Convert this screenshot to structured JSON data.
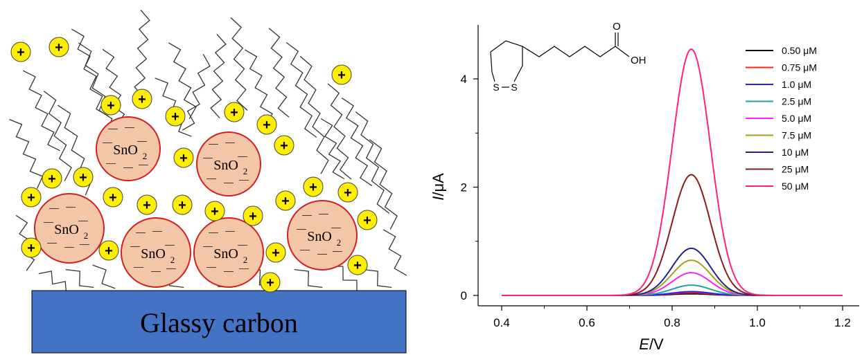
{
  "schematic": {
    "substrate_label": "Glassy carbon",
    "particle_label_main": "SnO",
    "particle_label_sub": "2",
    "cation_symbol": "+",
    "anion_symbol": "—",
    "colors": {
      "substrate": "#4472C4",
      "particle_fill": "#F4C6A8",
      "particle_stroke": "#D02020",
      "cation_fill": "#FFEE00",
      "chain": "#333333"
    }
  },
  "chart_data": {
    "type": "line",
    "xlabel_italic": "E",
    "xlabel_rest": "/V",
    "ylabel_italic": "I",
    "ylabel_rest": "/μA",
    "xlim": [
      0.4,
      1.2
    ],
    "ylim": [
      -0.2,
      5.0
    ],
    "xticks": [
      "0.4",
      "0.6",
      "0.8",
      "1.0",
      "1.2"
    ],
    "yticks": [
      "0",
      "2",
      "4"
    ],
    "legend_position": "top-right",
    "molecule_label": "OH",
    "molecule_o": "O",
    "molecule_s1": "S",
    "molecule_s2": "S",
    "series": [
      {
        "name": "0.50 μM",
        "color": "#000000",
        "peak": 0.03,
        "center": 0.845,
        "sigma": 0.045
      },
      {
        "name": "0.75 μM",
        "color": "#FF2020",
        "peak": 0.05,
        "center": 0.845,
        "sigma": 0.045
      },
      {
        "name": "1.0 μM",
        "color": "#2020FF",
        "peak": 0.07,
        "center": 0.845,
        "sigma": 0.045
      },
      {
        "name": "2.5 μM",
        "color": "#20A0A0",
        "peak": 0.19,
        "center": 0.845,
        "sigma": 0.045
      },
      {
        "name": "5.0 μM",
        "color": "#FF20FF",
        "peak": 0.42,
        "center": 0.845,
        "sigma": 0.045
      },
      {
        "name": "7.5 μM",
        "color": "#A0A020",
        "peak": 0.65,
        "center": 0.845,
        "sigma": 0.045
      },
      {
        "name": "10 μM",
        "color": "#202090",
        "peak": 0.87,
        "center": 0.845,
        "sigma": 0.045
      },
      {
        "name": "25 μM",
        "color": "#8B1A1A",
        "peak": 2.23,
        "center": 0.845,
        "sigma": 0.045
      },
      {
        "name": "50 μM",
        "color": "#FF2080",
        "peak": 4.55,
        "center": 0.845,
        "sigma": 0.045
      }
    ]
  }
}
